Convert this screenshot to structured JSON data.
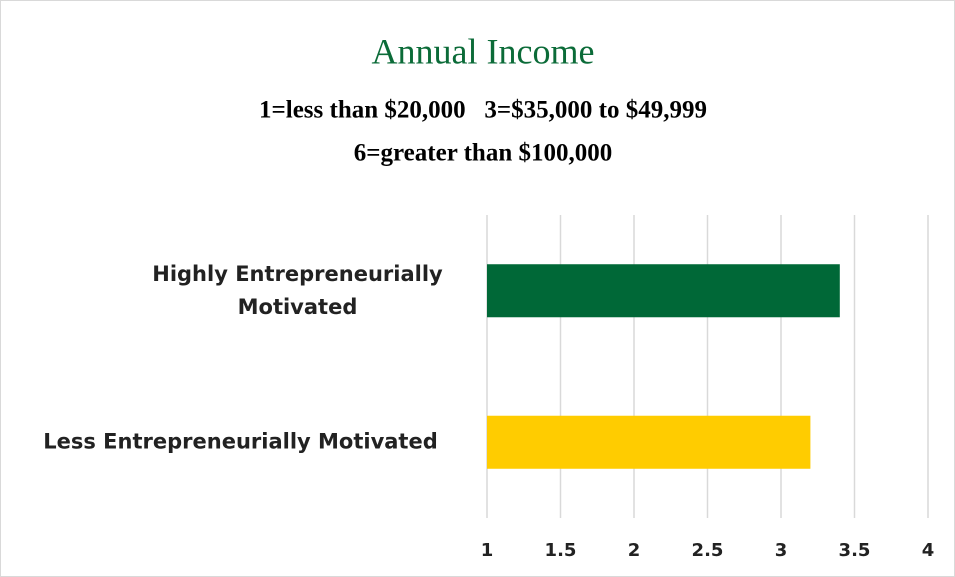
{
  "chart_data": {
    "type": "bar",
    "orientation": "horizontal",
    "title": "Annual Income",
    "subtitle": [
      "1=less than $20,000   3=$35,000 to $49,999",
      "6=greater than $100,000"
    ],
    "categories": [
      "Highly Entrepreneurially Motivated",
      "Less Entrepreneurially Motivated"
    ],
    "values": [
      3.4,
      3.2
    ],
    "colors": [
      "#006837",
      "#ffcc00"
    ],
    "xlim": [
      1,
      4
    ],
    "xticks": [
      1,
      1.5,
      2,
      2.5,
      3,
      3.5,
      4
    ],
    "grid": true
  }
}
